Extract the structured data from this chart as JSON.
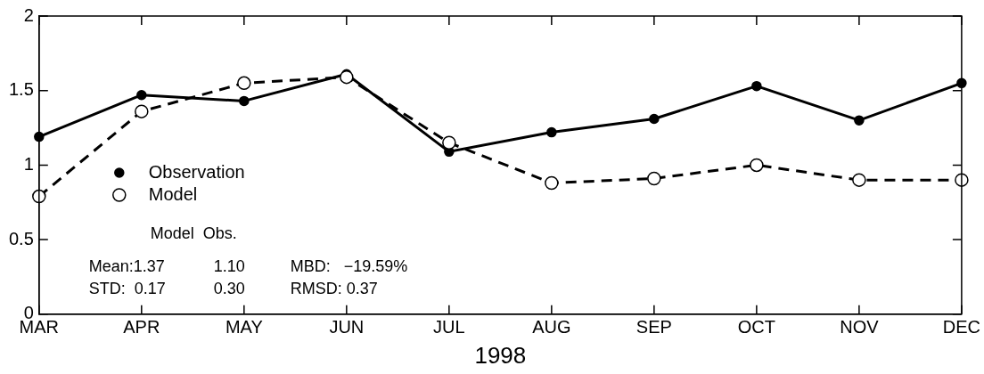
{
  "chart_data": {
    "type": "line",
    "xlabel": "1998",
    "categories": [
      "MAR",
      "APR",
      "MAY",
      "JUN",
      "JUL",
      "AUG",
      "SEP",
      "OCT",
      "NOV",
      "DEC"
    ],
    "series": [
      {
        "name": "Observation",
        "color": "#000000",
        "line_style": "solid",
        "marker": "circle",
        "values": [
          1.19,
          1.47,
          1.43,
          1.61,
          1.09,
          1.22,
          1.31,
          1.53,
          1.3,
          1.55
        ]
      },
      {
        "name": "Model",
        "color": "#000000",
        "line_style": "dashed",
        "marker": "circle",
        "values": [
          0.79,
          1.36,
          1.55,
          1.59,
          1.15,
          0.88,
          0.91,
          1.0,
          0.9,
          0.9
        ]
      }
    ],
    "ylim": [
      0,
      2
    ],
    "yticks": [
      0,
      0.5,
      1,
      1.5,
      2
    ],
    "grid": false,
    "legend": "left",
    "annotations": [
      "Model  Obs.",
      "Mean:1.37",
      "1.10",
      "MBD:   −19.59%",
      "STD:  0.17",
      "0.30",
      "RMSD: 0.37"
    ]
  }
}
